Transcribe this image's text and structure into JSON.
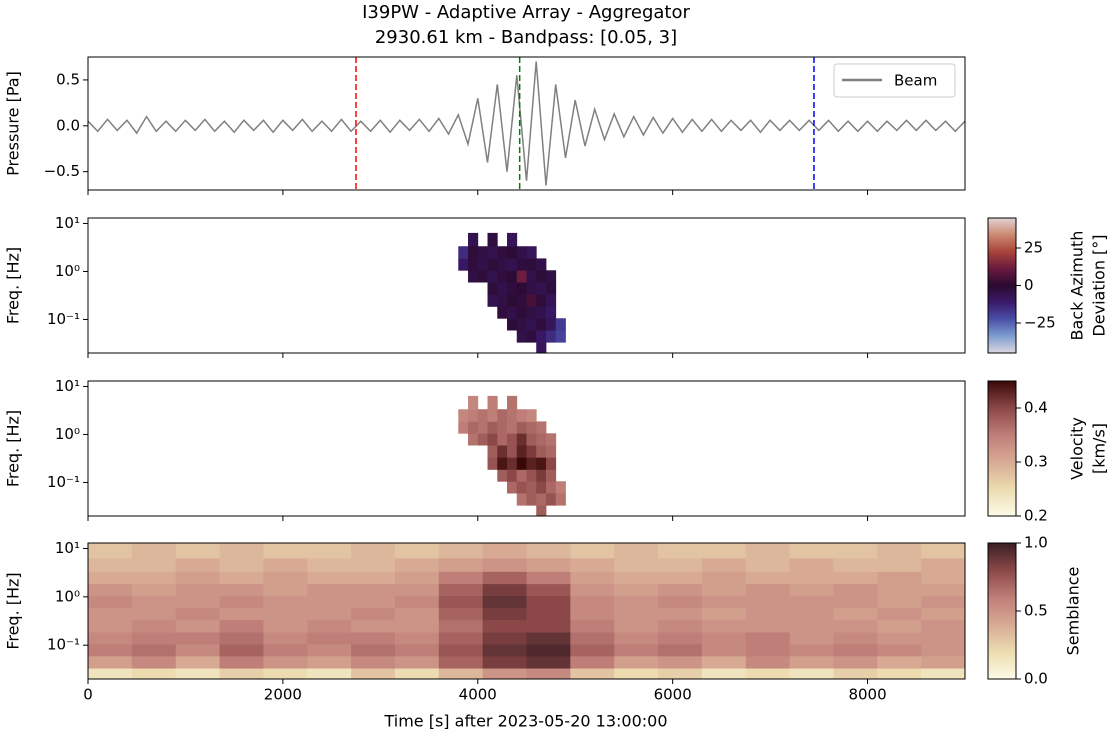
{
  "chart_data": [
    {
      "type": "line",
      "title": [
        "I39PW - Adaptive Array - Aggregator",
        "2930.61 km - Bandpass: [0.05, 3]"
      ],
      "ylabel": "Pressure [Pa]",
      "xlim": [
        0,
        9000
      ],
      "ylim": [
        -0.7,
        0.75
      ],
      "yticks": [
        {
          "value": -0.5,
          "label": "−0.5"
        },
        {
          "value": 0,
          "label": "0.0"
        },
        {
          "value": 0.5,
          "label": "0.5"
        }
      ],
      "legend": "upper right",
      "series": [
        {
          "name": "Beam",
          "color": "#808080",
          "x": [
            0,
            100,
            200,
            300,
            400,
            500,
            600,
            700,
            800,
            900,
            1000,
            1100,
            1200,
            1300,
            1400,
            1500,
            1600,
            1700,
            1800,
            1900,
            2000,
            2100,
            2200,
            2300,
            2400,
            2500,
            2600,
            2700,
            2800,
            2900,
            3000,
            3100,
            3200,
            3300,
            3400,
            3500,
            3600,
            3700,
            3800,
            3900,
            4000,
            4100,
            4200,
            4300,
            4400,
            4500,
            4600,
            4700,
            4800,
            4900,
            5000,
            5100,
            5200,
            5300,
            5400,
            5500,
            5600,
            5700,
            5800,
            5900,
            6000,
            6100,
            6200,
            6300,
            6400,
            6500,
            6600,
            6700,
            6800,
            6900,
            7000,
            7100,
            7200,
            7300,
            7400,
            7500,
            7600,
            7700,
            7800,
            7900,
            8000,
            8100,
            8200,
            8300,
            8400,
            8500,
            8600,
            8700,
            8800,
            8900,
            9000
          ],
          "values": [
            0.05,
            -0.06,
            0.07,
            -0.05,
            0.06,
            -0.08,
            0.1,
            -0.06,
            0.05,
            -0.06,
            0.06,
            -0.05,
            0.07,
            -0.06,
            0.05,
            -0.07,
            0.06,
            -0.05,
            0.06,
            -0.07,
            0.06,
            -0.05,
            0.07,
            -0.06,
            0.05,
            -0.06,
            0.07,
            -0.06,
            0.05,
            -0.06,
            0.06,
            -0.07,
            0.06,
            -0.05,
            0.07,
            -0.06,
            0.08,
            -0.09,
            0.12,
            -0.2,
            0.3,
            -0.4,
            0.45,
            -0.5,
            0.55,
            -0.6,
            0.7,
            -0.65,
            0.45,
            -0.35,
            0.28,
            -0.22,
            0.18,
            -0.15,
            0.13,
            -0.12,
            0.1,
            -0.1,
            0.09,
            -0.08,
            0.08,
            -0.07,
            0.07,
            -0.06,
            0.07,
            -0.06,
            0.06,
            -0.05,
            0.06,
            -0.07,
            0.06,
            -0.05,
            0.06,
            -0.05,
            0.06,
            -0.05,
            0.06,
            -0.06,
            0.05,
            -0.06,
            0.05,
            -0.06,
            0.05,
            -0.05,
            0.06,
            -0.05,
            0.06,
            -0.05,
            0.05,
            -0.06,
            0.05
          ]
        }
      ],
      "vlines": [
        {
          "x": 2750,
          "color": "#ff0000"
        },
        {
          "x": 4430,
          "color": "#008000"
        },
        {
          "x": 7450,
          "color": "#0000ff"
        }
      ]
    },
    {
      "type": "heatmap",
      "ylabel": "Freq. [Hz]",
      "ylog": true,
      "xlim": [
        0,
        9000
      ],
      "ylim": [
        0.02,
        13
      ],
      "yticks": [
        {
          "value": 0.1,
          "label": "10⁻¹"
        },
        {
          "value": 1,
          "label": "10⁰"
        },
        {
          "value": 10,
          "label": "10¹"
        }
      ],
      "x": [
        3850,
        3950,
        4050,
        4150,
        4250,
        4350,
        4450,
        4550,
        4650,
        4750,
        4850,
        4950
      ],
      "y": [
        0.025,
        0.045,
        0.08,
        0.14,
        0.25,
        0.45,
        0.8,
        1.4,
        2.5,
        4.5,
        9
      ],
      "values": [
        [
          null,
          null,
          null,
          null,
          null,
          null,
          null,
          null,
          -8,
          null,
          null,
          null
        ],
        [
          null,
          null,
          null,
          null,
          null,
          null,
          -5,
          -3,
          -10,
          -15,
          -20,
          null
        ],
        [
          null,
          null,
          null,
          null,
          null,
          -2,
          -4,
          -6,
          -3,
          -8,
          -18,
          null
        ],
        [
          null,
          null,
          null,
          null,
          -3,
          -5,
          -2,
          -4,
          -6,
          -10,
          null,
          null
        ],
        [
          null,
          null,
          null,
          -6,
          -4,
          -1,
          -3,
          5,
          -2,
          -7,
          null,
          null
        ],
        [
          null,
          null,
          null,
          -2,
          -5,
          -3,
          -1,
          -4,
          -6,
          -3,
          null,
          null
        ],
        [
          null,
          -4,
          -2,
          -6,
          -3,
          -1,
          12,
          -5,
          -2,
          -4,
          null,
          null
        ],
        [
          -10,
          -3,
          -5,
          -2,
          -4,
          -6,
          -3,
          -2,
          -5,
          null,
          null,
          null
        ],
        [
          -15,
          -2,
          -4,
          -6,
          -3,
          -1,
          -5,
          -8,
          null,
          null,
          null,
          null
        ],
        [
          null,
          -6,
          null,
          -3,
          null,
          -8,
          null,
          null,
          null,
          null,
          null,
          null
        ],
        [
          null,
          null,
          null,
          null,
          null,
          null,
          null,
          null,
          null,
          null,
          null,
          null
        ]
      ],
      "colorbar": {
        "label": [
          "Back Azimuth",
          "Deviation [°]"
        ],
        "lim": [
          -45,
          45
        ],
        "ticks": [
          {
            "value": -25,
            "label": "−25"
          },
          0,
          25
        ],
        "colormap": [
          "#dcd6e0",
          "#7d9ed0",
          "#4a4fa8",
          "#3a1a6a",
          "#2b0a30",
          "#6a1a40",
          "#a8443a",
          "#cc8870",
          "#e0d4d4"
        ]
      }
    },
    {
      "type": "heatmap",
      "ylabel": "Freq. [Hz]",
      "ylog": true,
      "xlim": [
        0,
        9000
      ],
      "ylim": [
        0.02,
        13
      ],
      "yticks": [
        {
          "value": 0.1,
          "label": "10⁻¹"
        },
        {
          "value": 1,
          "label": "10⁰"
        },
        {
          "value": 10,
          "label": "10¹"
        }
      ],
      "x": [
        3850,
        3950,
        4050,
        4150,
        4250,
        4350,
        4450,
        4550,
        4650,
        4750,
        4850,
        4950
      ],
      "y": [
        0.025,
        0.045,
        0.08,
        0.14,
        0.25,
        0.45,
        0.8,
        1.4,
        2.5,
        4.5,
        9
      ],
      "values": [
        [
          null,
          null,
          null,
          null,
          null,
          null,
          null,
          null,
          0.38,
          null,
          null,
          null
        ],
        [
          null,
          null,
          null,
          null,
          null,
          null,
          0.36,
          0.38,
          0.37,
          0.39,
          0.36,
          null
        ],
        [
          null,
          null,
          null,
          null,
          null,
          0.37,
          0.39,
          0.38,
          0.4,
          0.37,
          0.35,
          null
        ],
        [
          null,
          null,
          null,
          null,
          0.38,
          0.4,
          0.37,
          0.39,
          0.41,
          0.38,
          null,
          null
        ],
        [
          null,
          null,
          null,
          0.39,
          0.44,
          0.42,
          0.45,
          0.43,
          0.44,
          0.4,
          null,
          null
        ],
        [
          null,
          null,
          null,
          0.38,
          0.42,
          0.39,
          0.43,
          0.41,
          0.38,
          0.37,
          null,
          null
        ],
        [
          null,
          0.36,
          0.38,
          0.4,
          0.37,
          0.39,
          0.42,
          0.38,
          0.37,
          0.36,
          null,
          null
        ],
        [
          0.35,
          0.37,
          0.36,
          0.38,
          0.37,
          0.36,
          0.38,
          0.37,
          0.36,
          null,
          null,
          null
        ],
        [
          0.34,
          0.35,
          0.36,
          0.35,
          0.37,
          0.36,
          0.35,
          0.34,
          null,
          null,
          null,
          null
        ],
        [
          null,
          0.34,
          null,
          0.35,
          null,
          0.36,
          null,
          null,
          null,
          null,
          null,
          null
        ],
        [
          null,
          null,
          null,
          null,
          null,
          null,
          null,
          null,
          null,
          null,
          null,
          null
        ]
      ],
      "colorbar": {
        "label": [
          "Velocity",
          "[km/s]"
        ],
        "lim": [
          0.2,
          0.45
        ],
        "ticks": [
          0.2,
          0.3,
          0.4
        ],
        "colormap": [
          "#fcfce8",
          "#ecdcb0",
          "#d8aa94",
          "#bf7e78",
          "#8c4848",
          "#3a0808"
        ]
      }
    },
    {
      "type": "heatmap",
      "ylabel": "Freq. [Hz]",
      "ylog": true,
      "xlabel": "Time [s] after 2023-05-20 13:00:00",
      "xlim": [
        0,
        9000
      ],
      "xticks": [
        0,
        2000,
        4000,
        6000,
        8000
      ],
      "ylim": [
        0.02,
        13
      ],
      "yticks": [
        {
          "value": 0.1,
          "label": "10⁻¹"
        },
        {
          "value": 1,
          "label": "10⁰"
        },
        {
          "value": 10,
          "label": "10¹"
        }
      ],
      "x": [
        225,
        675,
        1125,
        1575,
        2025,
        2475,
        2925,
        3375,
        3825,
        4275,
        4725,
        5175,
        5625,
        6075,
        6525,
        6975,
        7425,
        7875,
        8325,
        8775
      ],
      "y": [
        0.025,
        0.045,
        0.08,
        0.14,
        0.25,
        0.45,
        0.8,
        1.4,
        2.5,
        4.5,
        9
      ],
      "values": [
        [
          0.15,
          0.2,
          0.15,
          0.25,
          0.2,
          0.15,
          0.3,
          0.2,
          0.35,
          0.5,
          0.55,
          0.3,
          0.2,
          0.25,
          0.15,
          0.2,
          0.15,
          0.25,
          0.2,
          0.15
        ],
        [
          0.45,
          0.55,
          0.4,
          0.6,
          0.5,
          0.45,
          0.55,
          0.5,
          0.7,
          0.85,
          0.9,
          0.6,
          0.45,
          0.5,
          0.4,
          0.55,
          0.45,
          0.5,
          0.4,
          0.45
        ],
        [
          0.6,
          0.65,
          0.55,
          0.7,
          0.6,
          0.55,
          0.65,
          0.6,
          0.75,
          0.9,
          0.95,
          0.7,
          0.6,
          0.65,
          0.55,
          0.6,
          0.55,
          0.6,
          0.55,
          0.5
        ],
        [
          0.55,
          0.6,
          0.6,
          0.65,
          0.55,
          0.6,
          0.6,
          0.55,
          0.7,
          0.85,
          0.9,
          0.65,
          0.55,
          0.6,
          0.55,
          0.6,
          0.5,
          0.55,
          0.5,
          0.5
        ],
        [
          0.5,
          0.55,
          0.5,
          0.6,
          0.5,
          0.55,
          0.5,
          0.5,
          0.65,
          0.8,
          0.8,
          0.6,
          0.5,
          0.55,
          0.5,
          0.5,
          0.5,
          0.5,
          0.45,
          0.5
        ],
        [
          0.5,
          0.5,
          0.55,
          0.5,
          0.5,
          0.5,
          0.55,
          0.5,
          0.7,
          0.85,
          0.8,
          0.55,
          0.5,
          0.5,
          0.45,
          0.5,
          0.5,
          0.45,
          0.5,
          0.45
        ],
        [
          0.55,
          0.5,
          0.5,
          0.55,
          0.5,
          0.5,
          0.5,
          0.55,
          0.75,
          0.9,
          0.8,
          0.55,
          0.5,
          0.55,
          0.5,
          0.5,
          0.5,
          0.5,
          0.45,
          0.5
        ],
        [
          0.5,
          0.45,
          0.5,
          0.5,
          0.45,
          0.5,
          0.5,
          0.5,
          0.7,
          0.85,
          0.75,
          0.5,
          0.45,
          0.5,
          0.45,
          0.5,
          0.45,
          0.5,
          0.45,
          0.45
        ],
        [
          0.4,
          0.4,
          0.45,
          0.4,
          0.45,
          0.4,
          0.4,
          0.45,
          0.6,
          0.7,
          0.6,
          0.45,
          0.4,
          0.4,
          0.45,
          0.4,
          0.4,
          0.4,
          0.45,
          0.4
        ],
        [
          0.35,
          0.35,
          0.4,
          0.35,
          0.4,
          0.35,
          0.35,
          0.4,
          0.45,
          0.5,
          0.45,
          0.4,
          0.35,
          0.35,
          0.4,
          0.35,
          0.4,
          0.35,
          0.35,
          0.4
        ],
        [
          0.3,
          0.35,
          0.3,
          0.35,
          0.3,
          0.3,
          0.35,
          0.3,
          0.35,
          0.4,
          0.35,
          0.3,
          0.35,
          0.3,
          0.3,
          0.35,
          0.3,
          0.3,
          0.35,
          0.3
        ]
      ],
      "colorbar": {
        "label": [
          "Semblance"
        ],
        "lim": [
          0,
          1
        ],
        "ticks": [
          {
            "value": 0,
            "label": "0.0"
          },
          {
            "value": 0.5,
            "label": "0.5"
          },
          {
            "value": 1,
            "label": "1.0"
          }
        ],
        "colormap": [
          "#fcfce8",
          "#ecdcb0",
          "#d8aa94",
          "#bf7e78",
          "#8c4848",
          "#3a1f24"
        ]
      }
    }
  ]
}
